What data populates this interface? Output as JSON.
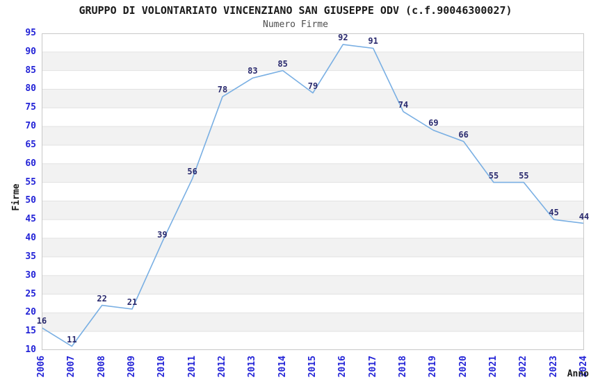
{
  "title": "GRUPPO DI VOLONTARIATO VINCENZIANO SAN GIUSEPPE ODV (c.f.90046300027)",
  "subtitle": "Numero Firme",
  "chart_data": {
    "type": "line",
    "title": "GRUPPO DI VOLONTARIATO VINCENZIANO SAN GIUSEPPE ODV (c.f.90046300027)",
    "subtitle": "Numero Firme",
    "xlabel": "Anno",
    "ylabel": "Firme",
    "categories": [
      "2006",
      "2007",
      "2008",
      "2009",
      "2010",
      "2011",
      "2012",
      "2013",
      "2014",
      "2015",
      "2016",
      "2017",
      "2018",
      "2019",
      "2020",
      "2021",
      "2022",
      "2023",
      "2024"
    ],
    "series": [
      {
        "name": "Numero Firme",
        "values": [
          16,
          11,
          22,
          21,
          39,
          56,
          78,
          83,
          85,
          79,
          92,
          91,
          74,
          69,
          66,
          55,
          55,
          45,
          44
        ]
      }
    ],
    "ylim": [
      10,
      95
    ],
    "ytick_step": 5,
    "grid": "horizontal-stripes",
    "legend_position": "none",
    "point_labels_visible": true
  },
  "colors": {
    "line": "#79AFE3",
    "tick_label": "#2323D7",
    "point_label": "#2A2A6E",
    "title": "#1A1A1A",
    "subtitle": "#4D4D4D",
    "axis_title": "#1A1A1A",
    "stripe": "#F2F2F2",
    "gridline": "#E2E2E2",
    "plot_border": "#C8C8C8",
    "background": "#FFFFFF"
  }
}
